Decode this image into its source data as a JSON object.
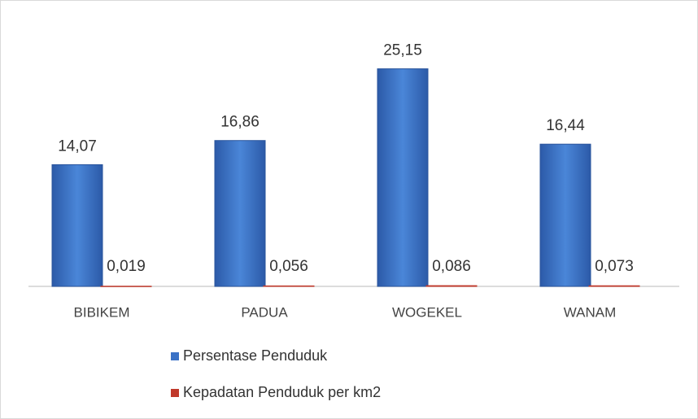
{
  "chart_data": {
    "type": "bar",
    "categories": [
      "BIBIKEM",
      "PADUA",
      "WOGEKEL",
      "WANAM"
    ],
    "series": [
      {
        "name": "Persentase Penduduk",
        "color": "#3b72c6",
        "values": [
          14.07,
          16.86,
          25.15,
          16.44
        ],
        "value_labels": [
          "14,07",
          "16,86",
          "25,15",
          "16,44"
        ]
      },
      {
        "name": "Kepadatan Penduduk per km2",
        "color": "#c0392b",
        "values": [
          0.019,
          0.056,
          0.086,
          0.073
        ],
        "value_labels": [
          "0,019",
          "0,056",
          "0,086",
          "0,073"
        ]
      }
    ],
    "ylim": [
      0,
      30
    ]
  }
}
